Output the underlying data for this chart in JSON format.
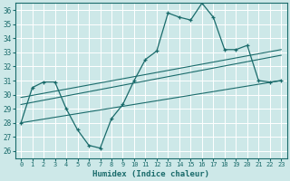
{
  "background_color": "#cde8e8",
  "grid_color": "#ffffff",
  "line_color": "#1a6b6b",
  "xlabel": "Humidex (Indice chaleur)",
  "ylim": [
    25.5,
    36.5
  ],
  "xlim": [
    -0.5,
    23.5
  ],
  "yticks": [
    26,
    27,
    28,
    29,
    30,
    31,
    32,
    33,
    34,
    35,
    36
  ],
  "xticks": [
    0,
    1,
    2,
    3,
    4,
    5,
    6,
    7,
    8,
    9,
    10,
    11,
    12,
    13,
    14,
    15,
    16,
    17,
    18,
    19,
    20,
    21,
    22,
    23
  ],
  "main_line": {
    "x": [
      0,
      1,
      2,
      3,
      4,
      5,
      6,
      7,
      8,
      9,
      10,
      11,
      12,
      13,
      14,
      15,
      16,
      17,
      18,
      19,
      20,
      21,
      22,
      23
    ],
    "y": [
      28.0,
      30.5,
      30.9,
      30.9,
      29.0,
      27.5,
      26.4,
      26.2,
      28.3,
      29.3,
      31.0,
      32.5,
      33.1,
      35.8,
      35.5,
      35.3,
      36.5,
      35.5,
      33.2,
      33.2,
      33.5,
      31.0,
      30.9,
      31.0
    ]
  },
  "reg_lines": [
    {
      "x": [
        0,
        23
      ],
      "y": [
        28.0,
        31.0
      ]
    },
    {
      "x": [
        0,
        23
      ],
      "y": [
        29.3,
        32.8
      ]
    },
    {
      "x": [
        0,
        23
      ],
      "y": [
        29.8,
        33.2
      ]
    }
  ]
}
